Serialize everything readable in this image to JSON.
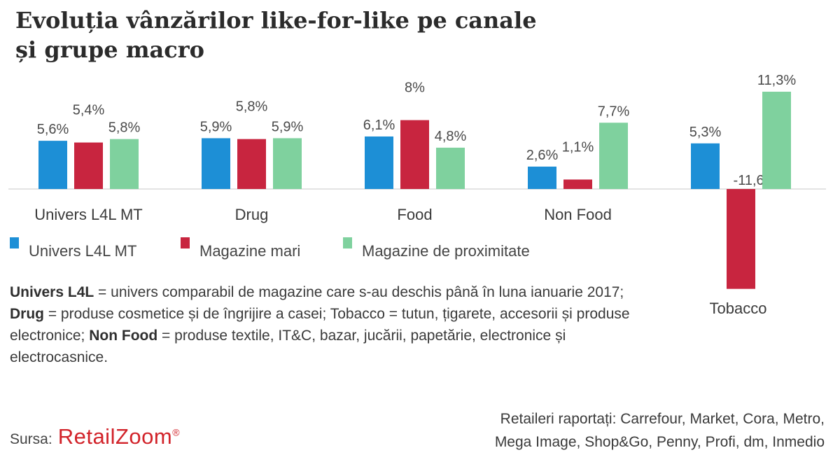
{
  "title": {
    "line1": "Evoluția vânzărilor like-for-like pe canale",
    "line2": "și grupe macro"
  },
  "chart_data": {
    "type": "bar",
    "title": "Evoluția vânzărilor like-for-like pe canale și grupe macro",
    "xlabel": "",
    "ylabel": "",
    "ylim": [
      -11.6,
      11.3
    ],
    "categories": [
      "Univers L4L MT",
      "Drug",
      "Food",
      "Non Food",
      "Tobacco"
    ],
    "series": [
      {
        "name": "Univers L4L MT",
        "color": "#1d8fd6",
        "values": [
          5.6,
          5.9,
          6.1,
          2.6,
          5.3
        ],
        "labels": [
          "5,6%",
          "5,9%",
          "6,1%",
          "2,6%",
          "5,3%"
        ]
      },
      {
        "name": "Magazine mari",
        "color": "#c8253f",
        "values": [
          5.4,
          5.8,
          8,
          1.1,
          -11.6
        ],
        "labels": [
          "5,4%",
          "5,8%",
          "8%",
          "1,1%",
          "-11,6%"
        ]
      },
      {
        "name": "Magazine de proximitate",
        "color": "#7fd19e",
        "values": [
          5.8,
          5.9,
          4.8,
          7.7,
          11.3
        ],
        "labels": [
          "5,8%",
          "5,9%",
          "4,8%",
          "7,7%",
          "11,3%"
        ]
      }
    ],
    "legend": "bottom-left",
    "grid": false
  },
  "footnote": {
    "term1": "Univers L4L",
    "def1": " = univers comparabil de magazine care s-au deschis până în luna ianuarie 2017; ",
    "term2": "Drug",
    "def2": " = produse cosmetice și de îngrijire a casei; Tobacco = tutun, țigarete, accesorii și produse electronice; ",
    "term3": "Non Food",
    "def3": " = produse textile, IT&C, bazar, jucării, papetărie, electronice și electrocasnice."
  },
  "source": {
    "label": "Sursa:",
    "brand": "RetailZoom",
    "mark": "®"
  },
  "retailers": {
    "line1": "Retaileri raportați: Carrefour, Market, Cora, Metro,",
    "line2": "Mega Image, Shop&Go, Penny, Profi, dm, Inmedio"
  }
}
